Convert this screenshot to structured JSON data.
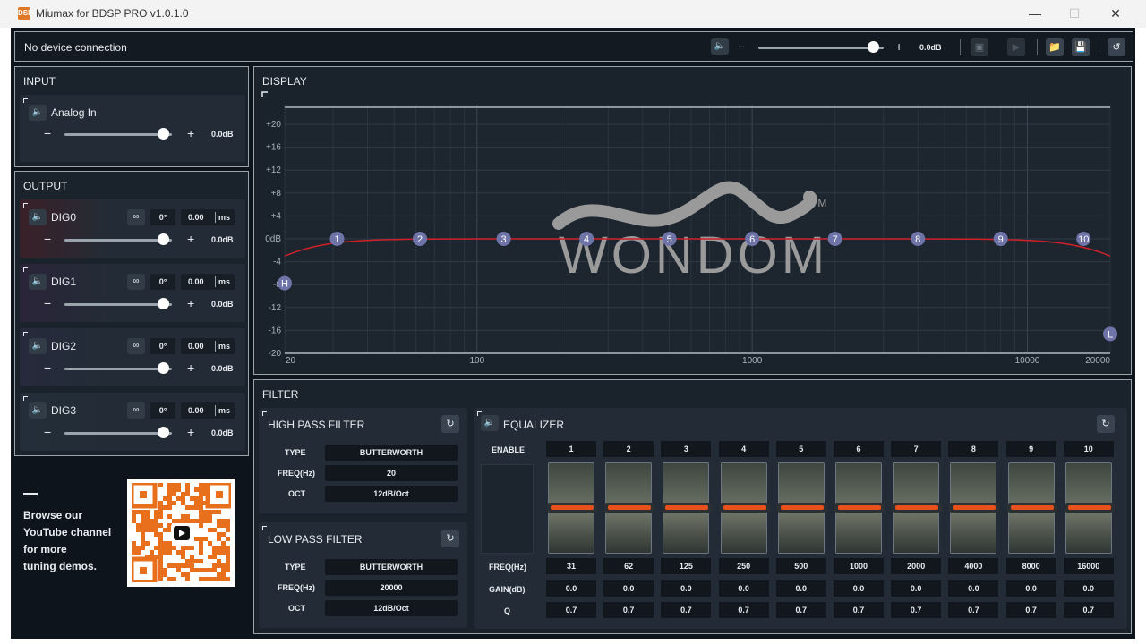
{
  "window": {
    "title": "Miumax for BDSP PRO v1.0.1.0",
    "app_icon": "DSP"
  },
  "topbar": {
    "status": "No device connection",
    "master_gain": "0.0dB",
    "master_level": 0.92
  },
  "input": {
    "title": "INPUT",
    "channel": {
      "name": "Analog In",
      "gain": "0.0dB",
      "level": 0.92
    }
  },
  "output": {
    "title": "OUTPUT",
    "channels": [
      {
        "name": "DIG0",
        "phase": "0°",
        "delay": "0.00",
        "unit": "ms",
        "gain": "0.0dB",
        "level": 0.92
      },
      {
        "name": "DIG1",
        "phase": "0°",
        "delay": "0.00",
        "unit": "ms",
        "gain": "0.0dB",
        "level": 0.92
      },
      {
        "name": "DIG2",
        "phase": "0°",
        "delay": "0.00",
        "unit": "ms",
        "gain": "0.0dB",
        "level": 0.92
      },
      {
        "name": "DIG3",
        "phase": "0°",
        "delay": "0.00",
        "unit": "ms",
        "gain": "0.0dB",
        "level": 0.92
      }
    ]
  },
  "promo": {
    "lines": [
      "Browse our",
      "YouTube channel",
      "for more",
      "tuning demos."
    ]
  },
  "display": {
    "title": "DISPLAY",
    "logo": "WONDOM",
    "logo_tm": "TM",
    "y_ticks": [
      "+20",
      "+16",
      "+12",
      "+8",
      "+4",
      "0dB",
      "-4",
      "-8",
      "-12",
      "-16",
      "-20"
    ],
    "x_ticks": [
      "20",
      "100",
      "1000",
      "10000",
      "20000"
    ],
    "points": [
      "1",
      "2",
      "3",
      "4",
      "5",
      "6",
      "7",
      "8",
      "9",
      "10"
    ],
    "hp_marker": "H",
    "lp_marker": "L"
  },
  "filter": {
    "title": "FILTER",
    "hpf": {
      "title": "HIGH PASS FILTER",
      "type_label": "TYPE",
      "type": "BUTTERWORTH",
      "freq_label": "FREQ(Hz)",
      "freq": "20",
      "oct_label": "OCT",
      "oct": "12dB/Oct"
    },
    "lpf": {
      "title": "LOW PASS FILTER",
      "type_label": "TYPE",
      "type": "BUTTERWORTH",
      "freq_label": "FREQ(Hz)",
      "freq": "20000",
      "oct_label": "OCT",
      "oct": "12dB/Oct"
    }
  },
  "equalizer": {
    "title": "EQUALIZER",
    "enable_label": "ENABLE",
    "freq_label": "FREQ(Hz)",
    "gain_label": "GAIN(dB)",
    "q_label": "Q",
    "bands": [
      {
        "n": "1",
        "freq": "31",
        "gain": "0.0",
        "q": "0.7"
      },
      {
        "n": "2",
        "freq": "62",
        "gain": "0.0",
        "q": "0.7"
      },
      {
        "n": "3",
        "freq": "125",
        "gain": "0.0",
        "q": "0.7"
      },
      {
        "n": "4",
        "freq": "250",
        "gain": "0.0",
        "q": "0.7"
      },
      {
        "n": "5",
        "freq": "500",
        "gain": "0.0",
        "q": "0.7"
      },
      {
        "n": "6",
        "freq": "1000",
        "gain": "0.0",
        "q": "0.7"
      },
      {
        "n": "7",
        "freq": "2000",
        "gain": "0.0",
        "q": "0.7"
      },
      {
        "n": "8",
        "freq": "4000",
        "gain": "0.0",
        "q": "0.7"
      },
      {
        "n": "9",
        "freq": "8000",
        "gain": "0.0",
        "q": "0.7"
      },
      {
        "n": "10",
        "freq": "16000",
        "gain": "0.0",
        "q": "0.7"
      }
    ]
  },
  "colors": {
    "accent": "#e8501c",
    "curve": "#d0202a",
    "marker": "#6f74a8",
    "bg": "#0e141b",
    "panel": "#1a222b"
  }
}
